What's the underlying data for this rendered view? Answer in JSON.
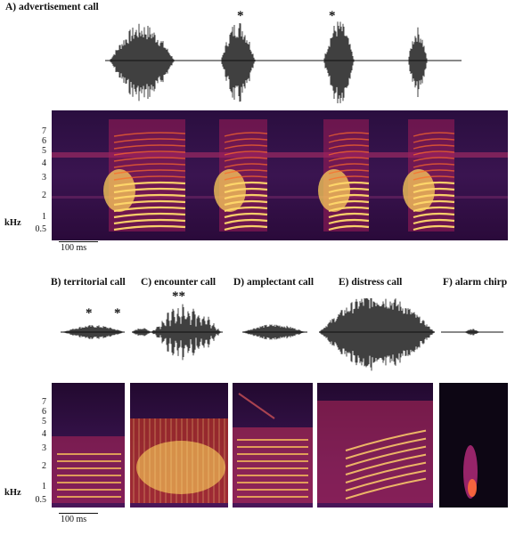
{
  "panelA": {
    "title": "A) advertisement call",
    "asterisk": "*",
    "ticks": [
      "7",
      "6",
      "5",
      "4",
      "3",
      "2",
      "1",
      "0.5"
    ],
    "unit": "kHz",
    "scale": "100 ms"
  },
  "panelB": {
    "titles": {
      "b": "B) territorial call",
      "c": "C) encounter call",
      "d": "D) amplectant call",
      "e": "E) distress call",
      "f": "F) alarm chirp"
    },
    "asterisk": "*",
    "double_asterisk": "**",
    "ticks": [
      "7",
      "6",
      "5",
      "4",
      "3",
      "2",
      "1",
      "0.5"
    ],
    "unit": "kHz",
    "scale": "100 ms"
  },
  "colors": {
    "spec_dark": "#1a0a2e",
    "spec_mid": "#7a1e6a",
    "spec_hot": "#ff5a1a",
    "spec_peak": "#fff2a0"
  }
}
